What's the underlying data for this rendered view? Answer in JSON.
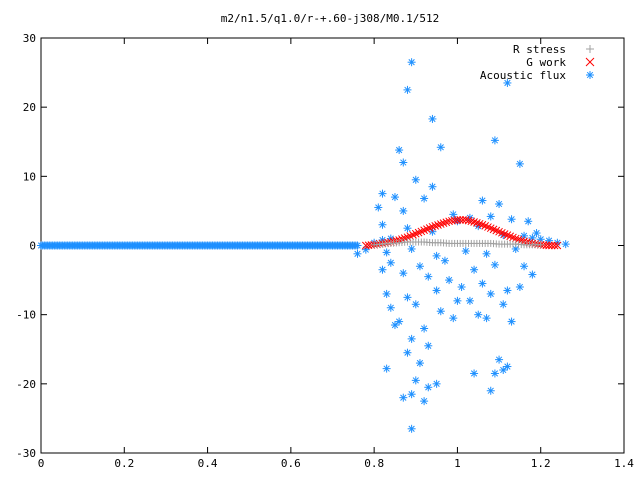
{
  "chart_data": {
    "type": "scatter",
    "title": "m2/n1.5/q1.0/r-+.60-j308/M0.1/512",
    "xlabel": "",
    "ylabel": "",
    "xlim": [
      0,
      1.4
    ],
    "ylim": [
      -30,
      30
    ],
    "x_ticks": [
      "0",
      "0.2",
      "0.4",
      "0.6",
      "0.8",
      "1",
      "1.2",
      "1.4"
    ],
    "y_ticks": [
      "30",
      "20",
      "10",
      "0",
      "-10",
      "-20",
      "-30"
    ],
    "x_tick_values": [
      0,
      0.2,
      0.4,
      0.6,
      0.8,
      1.0,
      1.2,
      1.4
    ],
    "y_tick_values": [
      30,
      20,
      10,
      0,
      -10,
      -20,
      -30
    ],
    "grid": false,
    "legend_position": "top-right",
    "series": [
      {
        "name": "R stress",
        "marker": "plus",
        "color": "#a0a0a0",
        "x": [
          0.8,
          0.82,
          0.84,
          0.86,
          0.88,
          0.9,
          0.92,
          0.94,
          0.96,
          0.98,
          1.0,
          1.02,
          1.04,
          1.06,
          1.08,
          1.1,
          1.12,
          1.14,
          1.16,
          1.18,
          1.2
        ],
        "y": [
          0.1,
          0.2,
          0.3,
          0.4,
          0.5,
          0.5,
          0.5,
          0.4,
          0.4,
          0.3,
          0.3,
          0.3,
          0.3,
          0.3,
          0.3,
          0.2,
          0.2,
          0.2,
          0.1,
          0.1,
          0.1
        ]
      },
      {
        "name": "G work",
        "marker": "x",
        "color": "#ff0000",
        "x": [
          0.78,
          0.8,
          0.82,
          0.84,
          0.86,
          0.88,
          0.9,
          0.92,
          0.94,
          0.96,
          0.98,
          1.0,
          1.02,
          1.04,
          1.06,
          1.08,
          1.1,
          1.12,
          1.14,
          1.16,
          1.18,
          1.2,
          1.22,
          1.24
        ],
        "y": [
          0.0,
          0.1,
          0.3,
          0.5,
          0.8,
          1.2,
          1.7,
          2.2,
          2.7,
          3.1,
          3.5,
          3.7,
          3.7,
          3.4,
          3.0,
          2.5,
          2.0,
          1.5,
          1.0,
          0.6,
          0.3,
          0.1,
          0.0,
          0.0
        ]
      },
      {
        "name": "Acoustic flux",
        "marker": "star",
        "color": "#1e90ff",
        "x": [
          0.89,
          0.88,
          1.12,
          0.94,
          1.09,
          0.96,
          0.86,
          0.87,
          0.9,
          0.94,
          1.15,
          0.82,
          0.85,
          0.92,
          1.06,
          1.1,
          0.81,
          0.87,
          0.99,
          1.03,
          1.08,
          1.13,
          1.17,
          0.82,
          0.88,
          0.94,
          1.0,
          1.05,
          1.11,
          1.19,
          0.83,
          0.89,
          0.95,
          1.02,
          1.07,
          1.14,
          0.84,
          0.91,
          0.97,
          1.04,
          1.09,
          1.16,
          0.82,
          0.87,
          0.93,
          0.98,
          1.01,
          1.06,
          1.12,
          1.18,
          0.83,
          0.88,
          0.95,
          1.03,
          1.08,
          1.15,
          0.84,
          0.9,
          0.96,
          1.0,
          1.05,
          1.11,
          0.86,
          0.92,
          0.99,
          1.07,
          1.13,
          0.89,
          0.93,
          0.95,
          1.04,
          1.1,
          1.12,
          0.83,
          0.88,
          0.91,
          1.09,
          1.11,
          0.85,
          0.9,
          0.93,
          1.08,
          0.89,
          0.87,
          0.92,
          0.89
        ],
        "y": [
          26.5,
          22.5,
          23.5,
          18.3,
          15.2,
          14.2,
          13.8,
          12.0,
          9.5,
          8.5,
          11.8,
          7.5,
          7.0,
          6.8,
          6.5,
          6.0,
          5.5,
          5.0,
          4.5,
          4.0,
          4.2,
          3.8,
          3.5,
          3.0,
          2.5,
          2.0,
          3.5,
          2.8,
          1.5,
          1.8,
          -1.0,
          -0.5,
          -1.5,
          -0.8,
          -1.2,
          -0.5,
          -2.5,
          -3.0,
          -2.2,
          -3.5,
          -2.8,
          -3.0,
          -3.5,
          -4.0,
          -4.5,
          -5.0,
          -6.0,
          -5.5,
          -6.5,
          -4.2,
          -7.0,
          -7.5,
          -6.5,
          -8.0,
          -7.0,
          -6.0,
          -9.0,
          -8.5,
          -9.5,
          -8.0,
          -10.0,
          -8.5,
          -11.0,
          -12.0,
          -10.5,
          -10.5,
          -11.0,
          -13.5,
          -14.5,
          -20.0,
          -18.5,
          -16.5,
          -17.5,
          -17.8,
          -15.5,
          -17.0,
          -18.5,
          -18.0,
          -11.5,
          -19.5,
          -20.5,
          -21.0,
          -21.5,
          -22.0,
          -22.5,
          -26.5
        ]
      }
    ],
    "baseline_band": {
      "series": "Acoustic flux",
      "x_start": 0.0,
      "x_end": 0.76,
      "y": 0.0
    },
    "right_cluster_band": {
      "series": "Acoustic flux",
      "x": [
        0.76,
        0.78,
        0.8,
        0.82,
        0.84,
        1.16,
        1.18,
        1.2,
        1.22,
        1.24,
        1.26
      ],
      "y": [
        -1.2,
        -0.6,
        0.4,
        0.8,
        1.0,
        1.4,
        1.1,
        0.9,
        0.7,
        0.4,
        0.2
      ]
    }
  }
}
